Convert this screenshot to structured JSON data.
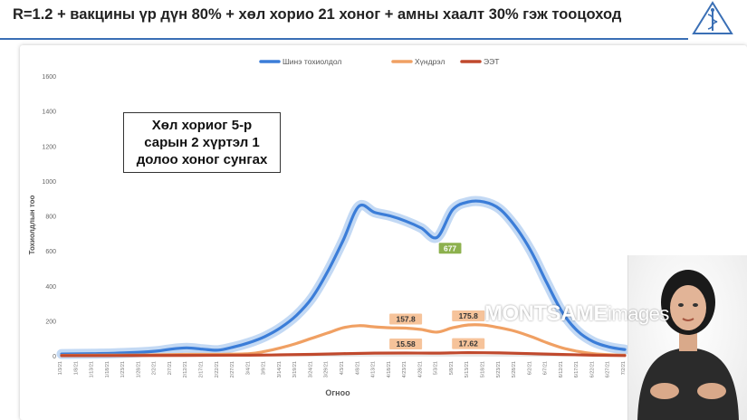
{
  "header": {
    "title": "R=1.2 + вакцины үр дүн 80% + хөл хорио 21 хоног + амны хаалт 30% гэж тооцоход"
  },
  "annotation": {
    "lines": [
      "Хөл хориог 5-р",
      "сарын 2 хүртэл 1",
      "долоо хоног сунгах"
    ]
  },
  "watermark": {
    "brand": "MONTSAME",
    "suffix": "images"
  },
  "chart_data": {
    "type": "line",
    "xlabel": "Огноо",
    "ylabel": "Тохиолдлын тоо",
    "ylim": [
      0,
      1600
    ],
    "yticks": [
      0,
      200,
      400,
      600,
      800,
      1000,
      1200,
      1400,
      1600
    ],
    "grid": false,
    "legend_position": "top",
    "x_ticks": [
      "1/3/21",
      "1/8/21",
      "1/13/21",
      "1/18/21",
      "1/23/21",
      "1/28/21",
      "2/2/21",
      "2/7/21",
      "2/12/21",
      "2/17/21",
      "2/22/21",
      "2/27/21",
      "3/4/21",
      "3/9/21",
      "3/14/21",
      "3/19/21",
      "3/24/21",
      "3/29/21",
      "4/3/21",
      "4/8/21",
      "4/13/21",
      "4/18/21",
      "4/23/21",
      "4/28/21",
      "5/3/21",
      "5/8/21",
      "5/13/21",
      "5/18/21",
      "5/23/21",
      "5/28/21",
      "6/2/21",
      "6/7/21",
      "6/12/21",
      "6/17/21",
      "6/22/21",
      "6/27/21",
      "7/2/21"
    ],
    "series": [
      {
        "name": "Шинэ тохиолдол",
        "color": "#3b7dd8",
        "band_color": "#a9c9f0",
        "points": [
          [
            0,
            10
          ],
          [
            2,
            12
          ],
          [
            4,
            16
          ],
          [
            6,
            26
          ],
          [
            7,
            38
          ],
          [
            8,
            45
          ],
          [
            9,
            38
          ],
          [
            10,
            32
          ],
          [
            11,
            50
          ],
          [
            12,
            75
          ],
          [
            13,
            110
          ],
          [
            14,
            160
          ],
          [
            15,
            230
          ],
          [
            16,
            330
          ],
          [
            17,
            480
          ],
          [
            18,
            660
          ],
          [
            19,
            855
          ],
          [
            20,
            820
          ],
          [
            21,
            800
          ],
          [
            22,
            770
          ],
          [
            23,
            730
          ],
          [
            24,
            677
          ],
          [
            25,
            835
          ],
          [
            26,
            880
          ],
          [
            27,
            880
          ],
          [
            28,
            840
          ],
          [
            29,
            740
          ],
          [
            30,
            600
          ],
          [
            31,
            420
          ],
          [
            32,
            250
          ],
          [
            33,
            140
          ],
          [
            34,
            80
          ],
          [
            35,
            50
          ],
          [
            36,
            35
          ]
        ]
      },
      {
        "name": "Хүндрэл",
        "color": "#f0a063",
        "points": [
          [
            0,
            2
          ],
          [
            5,
            4
          ],
          [
            8,
            8
          ],
          [
            10,
            8
          ],
          [
            12,
            12
          ],
          [
            13,
            25
          ],
          [
            14,
            45
          ],
          [
            15,
            70
          ],
          [
            16,
            100
          ],
          [
            17,
            130
          ],
          [
            18,
            160
          ],
          [
            19,
            172
          ],
          [
            20,
            165
          ],
          [
            21,
            160
          ],
          [
            22,
            157.8
          ],
          [
            23,
            150
          ],
          [
            24,
            135
          ],
          [
            25,
            160
          ],
          [
            26,
            175.8
          ],
          [
            27,
            175
          ],
          [
            28,
            160
          ],
          [
            29,
            140
          ],
          [
            30,
            110
          ],
          [
            31,
            75
          ],
          [
            32,
            45
          ],
          [
            33,
            25
          ],
          [
            34,
            12
          ],
          [
            35,
            6
          ],
          [
            36,
            3
          ]
        ]
      },
      {
        "name": "ЭЭТ",
        "color": "#c0492d",
        "points": [
          [
            0,
            0.5
          ],
          [
            8,
            2
          ],
          [
            12,
            3
          ],
          [
            14,
            5
          ],
          [
            16,
            8
          ],
          [
            18,
            12
          ],
          [
            20,
            15
          ],
          [
            22,
            15.58
          ],
          [
            24,
            15
          ],
          [
            26,
            17.62
          ],
          [
            28,
            16
          ],
          [
            30,
            12
          ],
          [
            32,
            7
          ],
          [
            34,
            3
          ],
          [
            36,
            1
          ]
        ]
      }
    ],
    "data_labels": [
      {
        "series": "Шинэ тохиолдол",
        "x": 24,
        "y": 677,
        "text": "677",
        "bg": "#8db14e",
        "fg": "#ffffff"
      },
      {
        "series": "Хүндрэл",
        "x": 22,
        "y": 157.8,
        "text": "157.8",
        "bg": "#f6c39a",
        "fg": "#333333"
      },
      {
        "series": "Хүндрэл",
        "x": 26,
        "y": 175.8,
        "text": "175.8",
        "bg": "#f6c39a",
        "fg": "#333333"
      },
      {
        "series": "ЭЭТ",
        "x": 22,
        "y": 15.58,
        "text": "15.58",
        "bg": "#f6c39a",
        "fg": "#333333"
      },
      {
        "series": "ЭЭТ",
        "x": 26,
        "y": 17.62,
        "text": "17.62",
        "bg": "#f6c39a",
        "fg": "#333333"
      }
    ]
  }
}
